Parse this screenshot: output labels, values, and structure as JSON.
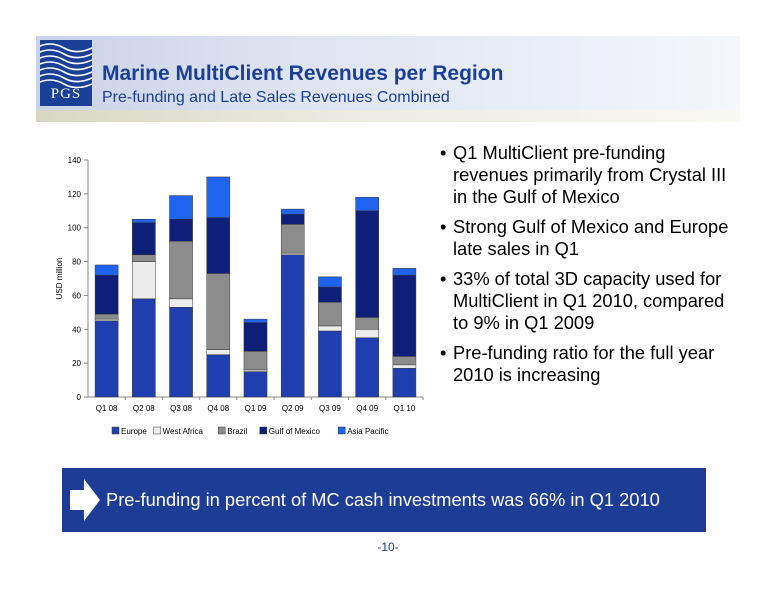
{
  "header": {
    "logo_text": "PGS",
    "title": "Marine MultiClient Revenues per Region",
    "subtitle": "Pre-funding and Late Sales Revenues Combined"
  },
  "bullets": [
    "Q1 MultiClient pre-funding revenues primarily from Crystal III in the Gulf of Mexico",
    "Strong Gulf of Mexico and Europe late sales in Q1",
    "33% of total 3D capacity used for MultiClient in Q1 2010, compared to 9% in Q1 2009",
    "Pre-funding ratio for the full year 2010 is increasing"
  ],
  "bullet_symbol": "•",
  "banner": {
    "text": "Pre-funding in percent of MC cash investments was 66% in Q1 2010",
    "icon": "right-arrow-icon"
  },
  "page_number": "-10-",
  "colors": {
    "brand_blue": "#1a3f96",
    "banner_blue": "#1d3c95"
  },
  "chart_data": {
    "type": "bar",
    "stacked": true,
    "categories": [
      "Q1 08",
      "Q2 08",
      "Q3 08",
      "Q4 08",
      "Q1 09",
      "Q2 09",
      "Q3 09",
      "Q4 09",
      "Q1 10"
    ],
    "series": [
      {
        "name": "Europe",
        "color": "#1f3fb0",
        "values": [
          45,
          58,
          53,
          25,
          15,
          84,
          39,
          35,
          17
        ]
      },
      {
        "name": "West Africa",
        "color": "#ececec",
        "values": [
          1,
          22,
          5,
          3,
          1,
          1,
          3,
          5,
          2
        ]
      },
      {
        "name": "Brazil",
        "color": "#8c8c8c",
        "values": [
          3,
          4,
          34,
          45,
          11,
          17,
          14,
          7,
          5
        ]
      },
      {
        "name": "Gulf of Mexico",
        "color": "#0d1f78",
        "values": [
          23,
          19,
          13,
          33,
          17,
          6,
          9,
          63,
          48
        ]
      },
      {
        "name": "Asia Pacific",
        "color": "#1f63ef",
        "values": [
          6,
          2,
          14,
          24,
          2,
          3,
          6,
          8,
          4
        ]
      }
    ],
    "ylabel": "USD million",
    "ylim": [
      0,
      140
    ],
    "yticks": [
      "0",
      "20",
      "40",
      "60",
      "80",
      "100",
      "120",
      "140"
    ],
    "legend_position": "bottom",
    "grid": false
  }
}
